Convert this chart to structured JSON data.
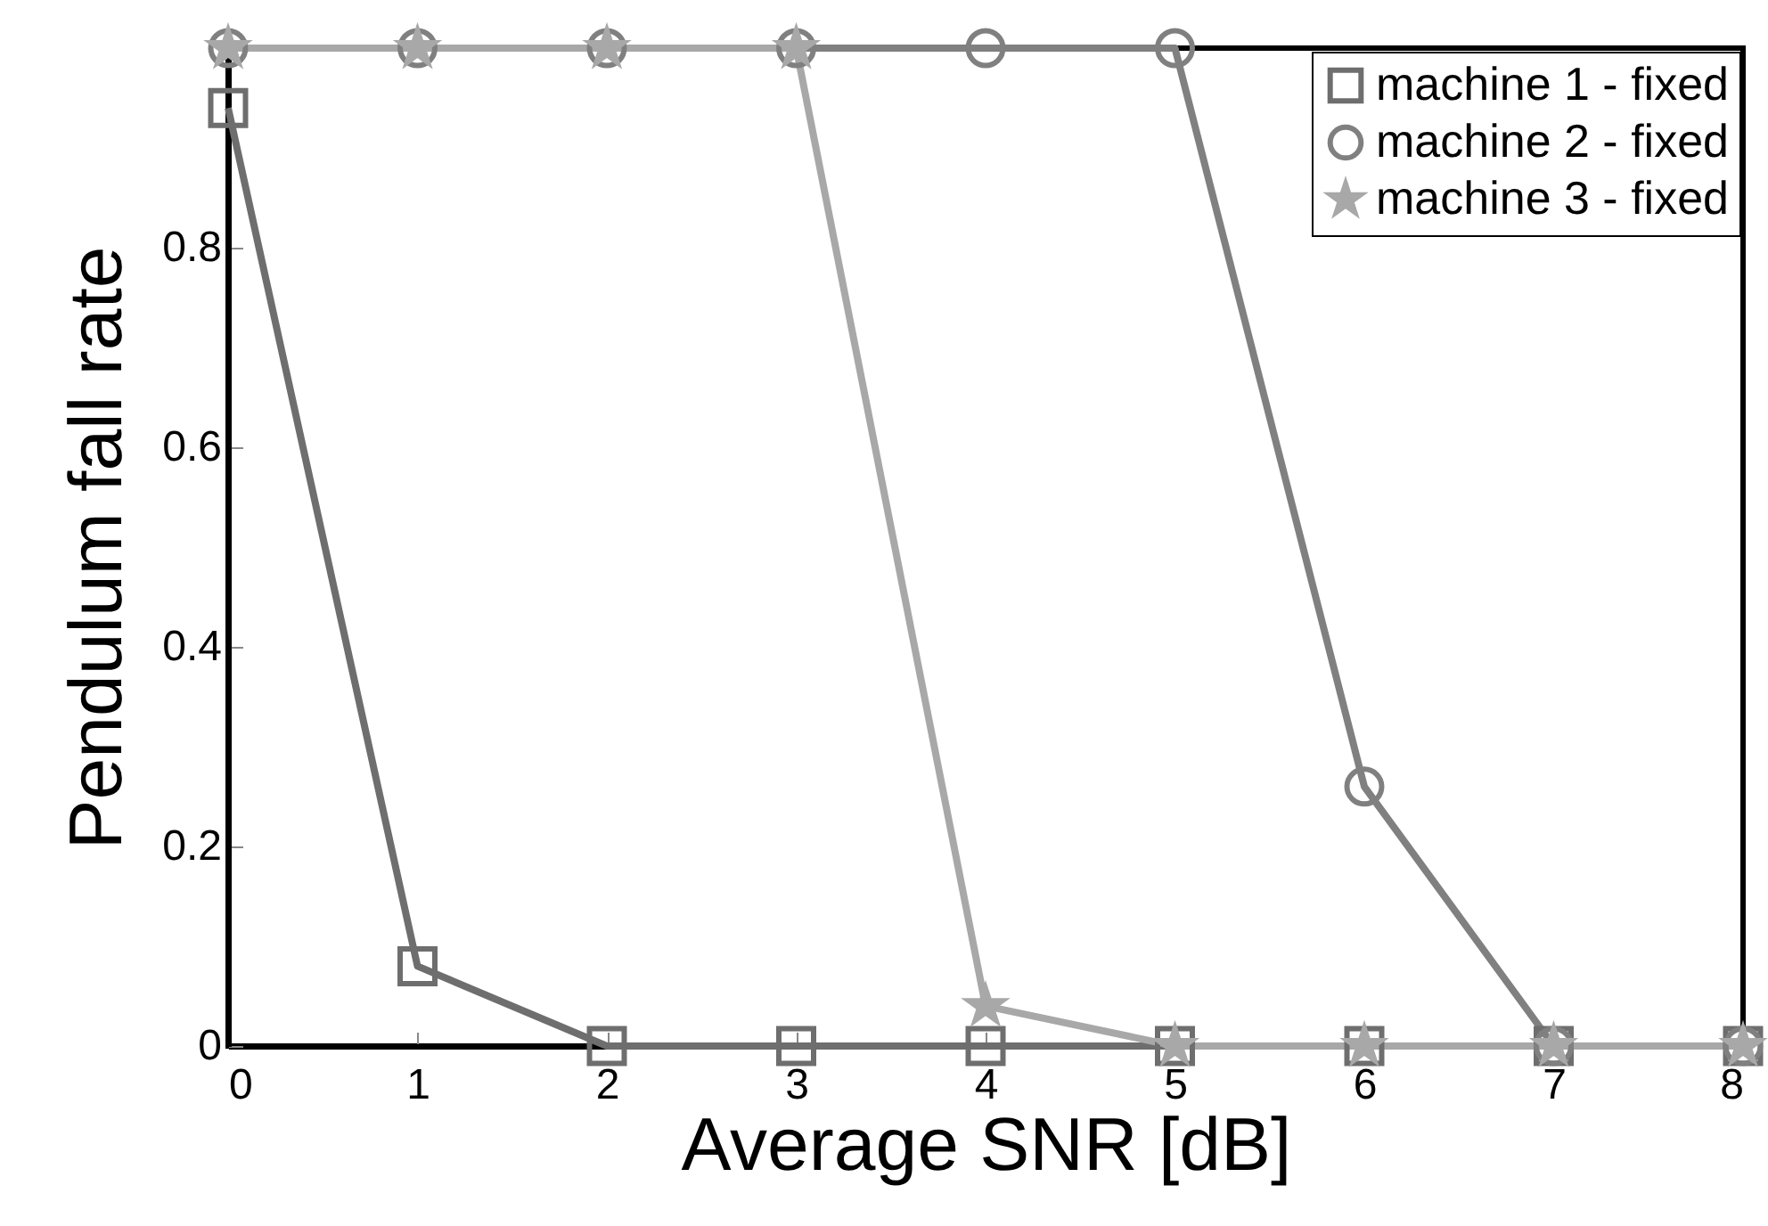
{
  "chart_data": {
    "type": "line",
    "xlabel": "Average SNR [dB]",
    "ylabel": "Pendulum fall rate",
    "x": [
      0,
      1,
      2,
      3,
      4,
      5,
      6,
      7,
      8
    ],
    "series": [
      {
        "name": "machine 1 - fixed",
        "color": "#6e6e6e",
        "marker": "square",
        "values": [
          0.94,
          0.08,
          0,
          0,
          0,
          0,
          0,
          0,
          0
        ]
      },
      {
        "name": "machine 2 - fixed",
        "color": "#808080",
        "marker": "circle",
        "values": [
          1,
          1,
          1,
          1,
          1,
          1,
          0.26,
          0,
          0
        ]
      },
      {
        "name": "machine 3 - fixed",
        "color": "#a8a8a8",
        "marker": "star",
        "values": [
          1,
          1,
          1,
          1,
          0.04,
          0,
          0,
          0,
          0
        ]
      }
    ],
    "xlim": [
      0,
      8
    ],
    "xticks": [
      0,
      1,
      2,
      3,
      4,
      5,
      6,
      7,
      8
    ],
    "ylim": [
      0,
      1
    ],
    "yticks": [
      0,
      0.2,
      0.4,
      0.6,
      0.8
    ],
    "grid": false,
    "legend": "top right",
    "line_style": "solid"
  }
}
